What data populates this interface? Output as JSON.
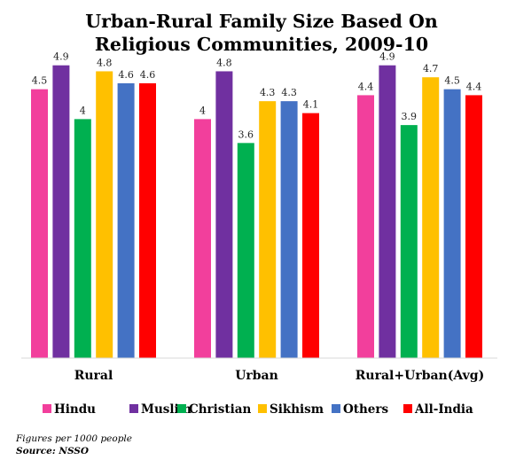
{
  "chart_data": {
    "type": "bar",
    "title": [
      "Urban-Rural Family Size Based On",
      "Religious Communities, 2009-10"
    ],
    "categories": [
      "Rural",
      "Urban",
      "Rural+Urban(Avg)"
    ],
    "ylim": [
      0,
      5.4
    ],
    "grid": false,
    "legend_position": "bottom",
    "series": [
      {
        "name": "Hindu",
        "color": "#F23F9C",
        "values": [
          4.5,
          4,
          4.4
        ],
        "labels": [
          "4.5",
          "4",
          "4.4"
        ]
      },
      {
        "name": "Muslim",
        "color": "#7030A0",
        "values": [
          4.9,
          4.8,
          4.9
        ],
        "labels": [
          "4.9",
          "4.8",
          "4.9"
        ]
      },
      {
        "name": "Christian",
        "color": "#00B050",
        "values": [
          4,
          3.6,
          3.9
        ],
        "labels": [
          "4",
          "3.6",
          "3.9"
        ]
      },
      {
        "name": "Sikhism",
        "color": "#FFC000",
        "values": [
          4.8,
          4.3,
          4.7
        ],
        "labels": [
          "4.8",
          "4.3",
          "4.7"
        ]
      },
      {
        "name": "Others",
        "color": "#4472C4",
        "values": [
          4.6,
          4.3,
          4.5
        ],
        "labels": [
          "4.6",
          "4.3",
          "4.5"
        ]
      },
      {
        "name": "All-India",
        "color": "#FF0000",
        "values": [
          4.6,
          4.1,
          4.4
        ],
        "labels": [
          "4.6",
          "4.1",
          "4.4"
        ]
      }
    ]
  },
  "notes": {
    "figures": "Figures per 1000 people",
    "source": "Source: NSSO"
  }
}
